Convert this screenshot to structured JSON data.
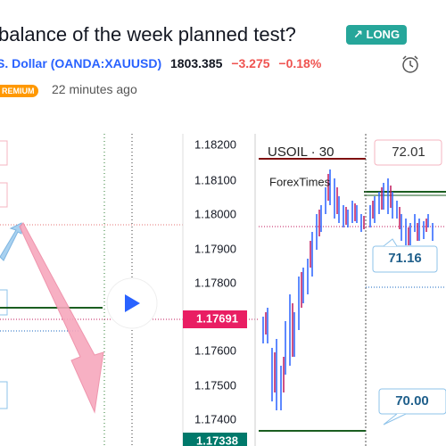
{
  "header": {
    "title": "balance of the week planned test?",
    "badge": "↗ LONG",
    "symbol_name": "S. Dollar",
    "symbol_code": "(OANDA:XAUUSD)",
    "price": "1803.385",
    "change": "−3.275",
    "change_pct": "−0.18%",
    "premium": "REMIUM",
    "time": "22 minutes ago"
  },
  "price_axis": {
    "ticks": [
      "1.18200",
      "1.18100",
      "1.18000",
      "1.17900",
      "1.17800",
      "1.17600",
      "1.17500",
      "1.17400"
    ],
    "current": "1.17691",
    "last": "1.17338"
  },
  "inset": {
    "symbol": "USOIL · 30",
    "source": "ForexTimes",
    "labels": [
      "72.01",
      "71.16",
      "70.00"
    ]
  }
}
